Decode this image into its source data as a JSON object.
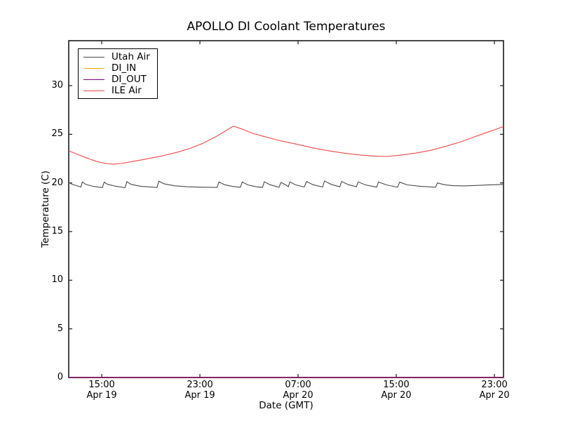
{
  "chart_data": {
    "type": "line",
    "title": "APOLLO DI Coolant Temperatures",
    "xlabel": "Date (GMT)",
    "ylabel": "Temperature (C)",
    "x_unit": "hours since Apr 19 00:00 GMT",
    "xlim": [
      12.31,
      47.74
    ],
    "ylim": [
      0,
      34.62
    ],
    "grid": false,
    "legend_position": "upper-left",
    "x_ticks": [
      {
        "value": 15,
        "label": "15:00",
        "sub": "Apr 19"
      },
      {
        "value": 23,
        "label": "23:00",
        "sub": "Apr 19"
      },
      {
        "value": 31,
        "label": "07:00",
        "sub": "Apr 20"
      },
      {
        "value": 39,
        "label": "15:00",
        "sub": "Apr 20"
      },
      {
        "value": 47,
        "label": "23:00",
        "sub": "Apr 20"
      }
    ],
    "y_ticks": [
      {
        "value": 0,
        "label": "0"
      },
      {
        "value": 5,
        "label": "5"
      },
      {
        "value": 10,
        "label": "10"
      },
      {
        "value": 15,
        "label": "15"
      },
      {
        "value": 20,
        "label": "20"
      },
      {
        "value": 25,
        "label": "25"
      },
      {
        "value": 30,
        "label": "30"
      }
    ],
    "series": [
      {
        "name": "Utah Air",
        "color": "#4a4a4a",
        "width": 1.1,
        "points": [
          [
            12.31,
            20.05
          ],
          [
            12.6,
            19.85
          ],
          [
            13.0,
            19.7
          ],
          [
            13.3,
            19.58
          ],
          [
            13.42,
            20.1
          ],
          [
            13.7,
            19.85
          ],
          [
            14.3,
            19.65
          ],
          [
            15.05,
            19.52
          ],
          [
            15.2,
            20.08
          ],
          [
            15.5,
            19.85
          ],
          [
            16.2,
            19.65
          ],
          [
            16.9,
            19.52
          ],
          [
            17.05,
            20.12
          ],
          [
            17.4,
            19.85
          ],
          [
            18.2,
            19.65
          ],
          [
            19.5,
            19.53
          ],
          [
            19.66,
            20.18
          ],
          [
            20.1,
            19.9
          ],
          [
            21.0,
            19.7
          ],
          [
            22.0,
            19.6
          ],
          [
            23.2,
            19.56
          ],
          [
            24.4,
            19.54
          ],
          [
            24.55,
            20.1
          ],
          [
            25.0,
            19.82
          ],
          [
            25.7,
            19.63
          ],
          [
            26.3,
            19.55
          ],
          [
            26.45,
            20.1
          ],
          [
            26.9,
            19.8
          ],
          [
            27.6,
            19.6
          ],
          [
            28.1,
            19.54
          ],
          [
            28.25,
            20.12
          ],
          [
            28.7,
            19.82
          ],
          [
            29.3,
            19.6
          ],
          [
            29.45,
            19.55
          ],
          [
            29.6,
            20.05
          ],
          [
            30.0,
            19.8
          ],
          [
            30.2,
            19.6
          ],
          [
            30.33,
            20.1
          ],
          [
            30.8,
            19.8
          ],
          [
            31.5,
            19.58
          ],
          [
            31.7,
            20.15
          ],
          [
            32.2,
            19.82
          ],
          [
            33.0,
            19.58
          ],
          [
            33.15,
            20.2
          ],
          [
            33.7,
            19.85
          ],
          [
            34.4,
            19.6
          ],
          [
            34.55,
            20.15
          ],
          [
            35.1,
            19.82
          ],
          [
            35.75,
            19.6
          ],
          [
            35.9,
            20.1
          ],
          [
            36.5,
            19.8
          ],
          [
            37.4,
            19.57
          ],
          [
            37.55,
            20.1
          ],
          [
            38.2,
            19.8
          ],
          [
            39.1,
            19.56
          ],
          [
            39.28,
            20.08
          ],
          [
            39.9,
            19.8
          ],
          [
            41.0,
            19.65
          ],
          [
            42.2,
            19.56
          ],
          [
            42.35,
            20.0
          ],
          [
            42.9,
            19.82
          ],
          [
            43.6,
            19.72
          ],
          [
            44.5,
            19.7
          ],
          [
            45.5,
            19.74
          ],
          [
            46.5,
            19.79
          ],
          [
            47.74,
            19.85
          ]
        ]
      },
      {
        "name": "DI_IN",
        "color": "#ffa500",
        "width": 1.2,
        "points": [
          [
            12.31,
            0
          ],
          [
            47.74,
            0
          ]
        ]
      },
      {
        "name": "DI_OUT",
        "color": "#800080",
        "width": 1.2,
        "points": [
          [
            12.31,
            0
          ],
          [
            47.74,
            0
          ]
        ]
      },
      {
        "name": "ILE Air",
        "color": "#f04848",
        "width": 1.1,
        "points": [
          [
            12.31,
            23.3
          ],
          [
            13.0,
            22.95
          ],
          [
            13.8,
            22.55
          ],
          [
            14.6,
            22.2
          ],
          [
            15.3,
            22.0
          ],
          [
            15.9,
            21.93
          ],
          [
            16.6,
            22.0
          ],
          [
            17.5,
            22.2
          ],
          [
            18.6,
            22.45
          ],
          [
            19.8,
            22.75
          ],
          [
            21.0,
            23.1
          ],
          [
            22.2,
            23.55
          ],
          [
            23.3,
            24.1
          ],
          [
            24.3,
            24.75
          ],
          [
            25.1,
            25.35
          ],
          [
            25.74,
            25.85
          ],
          [
            26.4,
            25.55
          ],
          [
            27.3,
            25.1
          ],
          [
            28.3,
            24.75
          ],
          [
            29.5,
            24.35
          ],
          [
            30.8,
            24.0
          ],
          [
            32.2,
            23.6
          ],
          [
            33.5,
            23.3
          ],
          [
            34.8,
            23.05
          ],
          [
            36.2,
            22.85
          ],
          [
            37.3,
            22.75
          ],
          [
            38.2,
            22.72
          ],
          [
            39.3,
            22.85
          ],
          [
            40.5,
            23.05
          ],
          [
            41.8,
            23.35
          ],
          [
            43.0,
            23.75
          ],
          [
            44.2,
            24.2
          ],
          [
            45.3,
            24.7
          ],
          [
            46.3,
            25.15
          ],
          [
            47.1,
            25.5
          ],
          [
            47.74,
            25.8
          ]
        ]
      }
    ],
    "axis_color": "#1a1a1a",
    "bottom_spine_blend_color": "#6b4450"
  }
}
